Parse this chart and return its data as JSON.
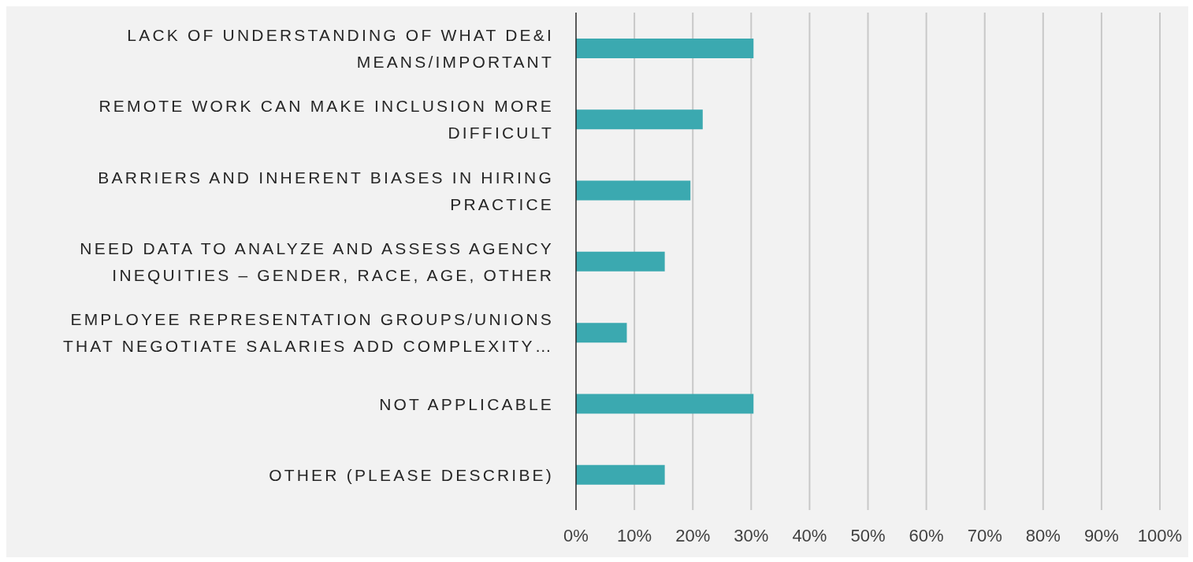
{
  "chart_data": {
    "type": "bar",
    "orientation": "horizontal",
    "categories": [
      "LACK OF UNDERSTANDING OF WHAT DE&I MEANS/IMPORTANT",
      "REMOTE WORK CAN MAKE INCLUSION MORE DIFFICULT",
      "BARRIERS AND INHERENT BIASES IN HIRING PRACTICE",
      "NEED DATA TO ANALYZE AND ASSESS AGENCY INEQUITIES – GENDER, RACE, AGE, OTHER",
      "EMPLOYEE REPRESENTATION GROUPS/UNIONS THAT NEGOTIATE SALARIES ADD COMPLEXITY…",
      "NOT APPLICABLE",
      "OTHER (PLEASE DESCRIBE)"
    ],
    "values": [
      30.4,
      21.7,
      19.6,
      15.2,
      8.7,
      30.4,
      15.2
    ],
    "color": "#3ba9b0",
    "xlim": [
      0,
      100
    ],
    "xticks": [
      {
        "value": 0,
        "label": "0%"
      },
      {
        "value": 10,
        "label": "10%"
      },
      {
        "value": 20,
        "label": "20%"
      },
      {
        "value": 30,
        "label": "30%"
      },
      {
        "value": 40,
        "label": "40%"
      },
      {
        "value": 50,
        "label": "50%"
      },
      {
        "value": 60,
        "label": "60%"
      },
      {
        "value": 70,
        "label": "70%"
      },
      {
        "value": 80,
        "label": "80%"
      },
      {
        "value": 90,
        "label": "90%"
      },
      {
        "value": 100,
        "label": "100%"
      }
    ],
    "grid": "x",
    "legend": false
  }
}
